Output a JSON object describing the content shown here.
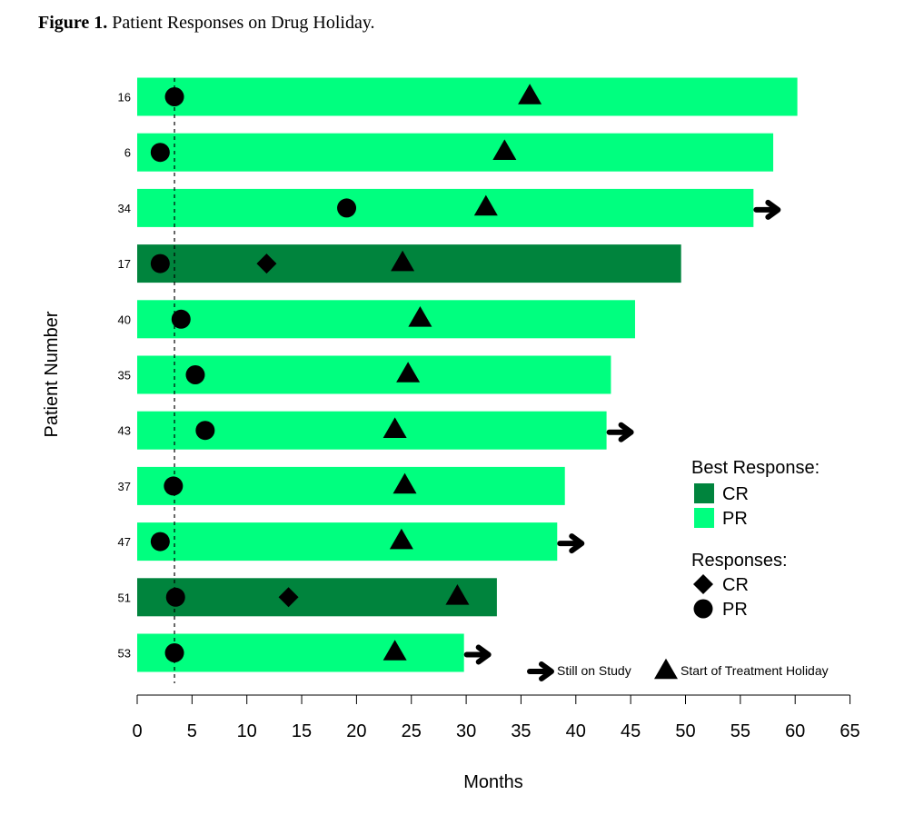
{
  "figure": {
    "label": "Figure 1.",
    "caption": "Patient Responses on Drug Holiday."
  },
  "chart_data": {
    "type": "bar",
    "orientation": "horizontal",
    "xlabel": "Months",
    "ylabel": "Patient Number",
    "xlim": [
      0,
      65
    ],
    "xticks": [
      0,
      5,
      10,
      15,
      20,
      25,
      30,
      35,
      40,
      45,
      50,
      55,
      60,
      65
    ],
    "reference_line_x": 3.4,
    "colors": {
      "CR": "#00843d",
      "PR": "#00ff7f",
      "marker": "#000000"
    },
    "patients": [
      {
        "id": "16",
        "months": 60.2,
        "best": "PR",
        "pr": 3.4,
        "cr": null,
        "holiday": 35.8,
        "still_on_study": false
      },
      {
        "id": "6",
        "months": 58.0,
        "best": "PR",
        "pr": 2.1,
        "cr": null,
        "holiday": 33.5,
        "still_on_study": false
      },
      {
        "id": "34",
        "months": 56.2,
        "best": "PR",
        "pr": 19.1,
        "cr": null,
        "holiday": 31.8,
        "still_on_study": true
      },
      {
        "id": "17",
        "months": 49.6,
        "best": "CR",
        "pr": 2.1,
        "cr": 11.8,
        "holiday": 24.2,
        "still_on_study": false
      },
      {
        "id": "40",
        "months": 45.4,
        "best": "PR",
        "pr": 4.0,
        "cr": null,
        "holiday": 25.8,
        "still_on_study": false
      },
      {
        "id": "35",
        "months": 43.2,
        "best": "PR",
        "pr": 5.3,
        "cr": null,
        "holiday": 24.7,
        "still_on_study": false
      },
      {
        "id": "43",
        "months": 42.8,
        "best": "PR",
        "pr": 6.2,
        "cr": null,
        "holiday": 23.5,
        "still_on_study": true
      },
      {
        "id": "37",
        "months": 39.0,
        "best": "PR",
        "pr": 3.3,
        "cr": null,
        "holiday": 24.4,
        "still_on_study": false
      },
      {
        "id": "47",
        "months": 38.3,
        "best": "PR",
        "pr": 2.1,
        "cr": null,
        "holiday": 24.1,
        "still_on_study": true
      },
      {
        "id": "51",
        "months": 32.8,
        "best": "CR",
        "pr": 3.5,
        "cr": 13.8,
        "holiday": 29.2,
        "still_on_study": false
      },
      {
        "id": "53",
        "months": 29.8,
        "best": "PR",
        "pr": 3.4,
        "cr": null,
        "holiday": 23.5,
        "still_on_study": true
      }
    ],
    "legend": {
      "best_response_title": "Best Response:",
      "best_response_items": [
        "CR",
        "PR"
      ],
      "responses_title": "Responses:",
      "responses_items": [
        {
          "label": "CR",
          "marker": "diamond"
        },
        {
          "label": "PR",
          "marker": "circle"
        }
      ],
      "still_on_study_label": "Still on Study",
      "holiday_label": "Start of Treatment Holiday"
    }
  }
}
